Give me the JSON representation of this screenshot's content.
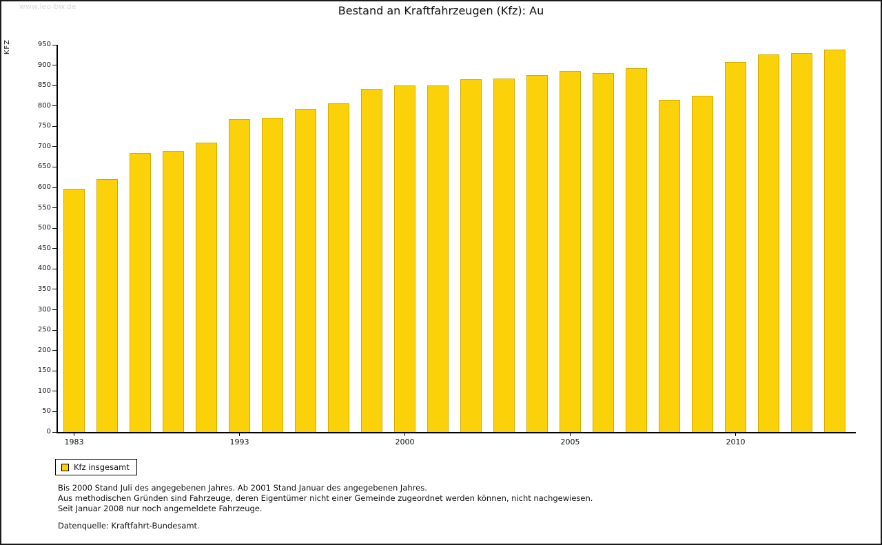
{
  "page": {
    "watermark": "www.leo-bw.de",
    "title": "Bestand an Kraftfahrzeugen (Kfz): Au"
  },
  "chart_data": {
    "type": "bar",
    "title": "Bestand an Kraftfahrzeugen (Kfz): Au",
    "ylabel": "KFZ",
    "ylim": [
      0,
      950
    ],
    "ytick_step": 50,
    "yticks": [
      0,
      50,
      100,
      150,
      200,
      250,
      300,
      350,
      400,
      450,
      500,
      550,
      600,
      650,
      700,
      750,
      800,
      850,
      900,
      950
    ],
    "values": [
      597,
      620,
      684,
      690,
      710,
      768,
      771,
      793,
      806,
      841,
      851,
      850,
      865,
      867,
      876,
      885,
      880,
      892,
      814,
      825,
      907,
      926,
      929,
      938
    ],
    "x_tick_labels": [
      {
        "label": "1983",
        "bar_index": 0
      },
      {
        "label": "1993",
        "bar_index": 5
      },
      {
        "label": "2000",
        "bar_index": 10
      },
      {
        "label": "2005",
        "bar_index": 15
      },
      {
        "label": "2010",
        "bar_index": 20
      }
    ],
    "bar_color": "#fbd109",
    "grid": false,
    "legend_position": "bottom-left"
  },
  "legend": {
    "label": "Kfz insgesamt"
  },
  "footnotes": {
    "line1": "Bis 2000 Stand Juli des angegebenen Jahres. Ab 2001 Stand Januar des angegebenen Jahres.",
    "line2": "Aus methodischen Gründen sind Fahrzeuge, deren Eigentümer nicht einer Gemeinde zugeordnet werden können, nicht nachgewiesen.",
    "line3": "Seit Januar 2008 nur noch angemeldete Fahrzeuge.",
    "source": "Datenquelle: Kraftfahrt-Bundesamt."
  }
}
